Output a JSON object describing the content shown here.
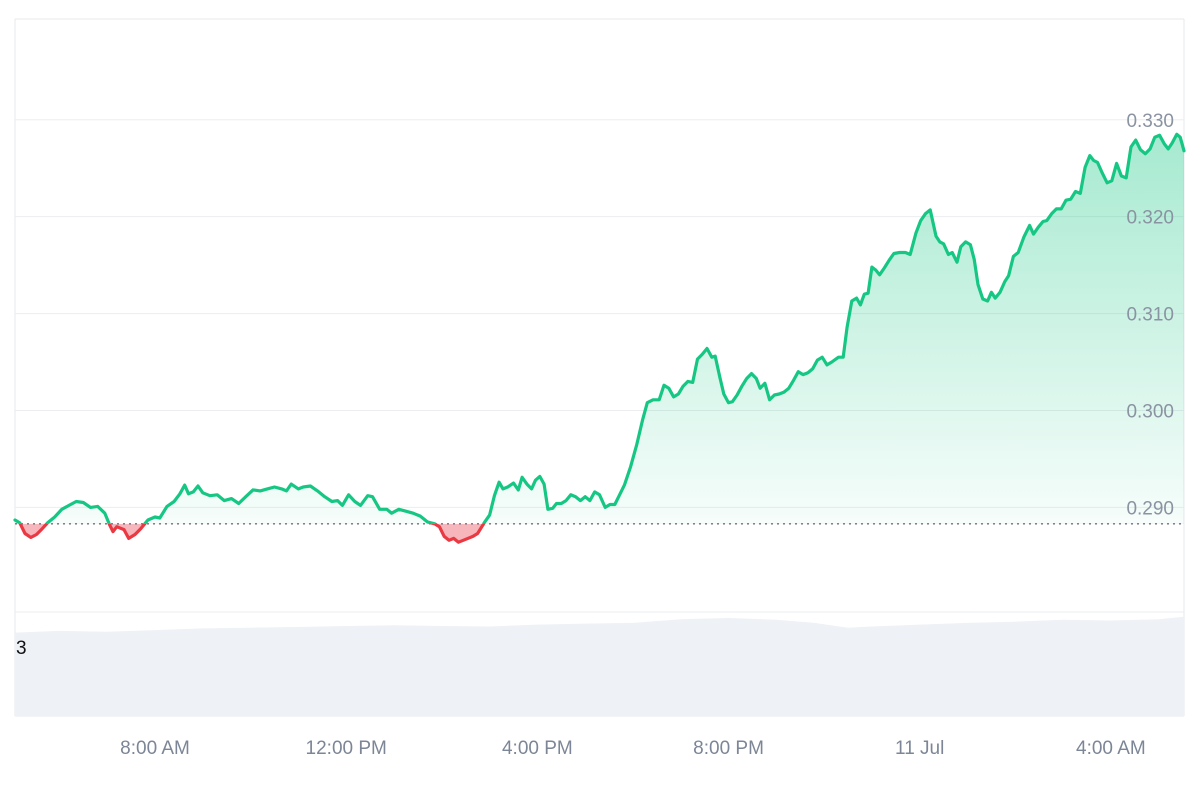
{
  "chart_data": {
    "type": "area",
    "y_ticks": [
      "0.290",
      "0.300",
      "0.310",
      "0.320",
      "0.330"
    ],
    "y_tick_values": [
      0.29,
      0.3,
      0.31,
      0.32,
      0.33
    ],
    "ylim": [
      0.2792,
      0.3403
    ],
    "x_ticks": [
      "8:00 AM",
      "12:00 PM",
      "4:00 PM",
      "8:00 PM",
      "11 Jul",
      "4:00 AM"
    ],
    "x_tick_hours": [
      8,
      12,
      16,
      20,
      24,
      28
    ],
    "xlim": [
      5.07,
      29.53
    ],
    "baseline": 0.2883,
    "volume_label": "3",
    "grid": true,
    "colors": {
      "up_line": "#16c784",
      "down_line": "#ea3943",
      "down_fill": "#f7b6bb",
      "volume": "#eef1f5",
      "grid": "#ebedf0",
      "baseline": "#6b7280"
    },
    "price_series": {
      "name": "",
      "points": [
        [
          5.07,
          0.2887
        ],
        [
          5.17,
          0.2884
        ],
        [
          5.28,
          0.2873
        ],
        [
          5.4,
          0.2869
        ],
        [
          5.52,
          0.2872
        ],
        [
          5.64,
          0.2878
        ],
        [
          5.75,
          0.2884
        ],
        [
          5.9,
          0.289
        ],
        [
          6.05,
          0.2898
        ],
        [
          6.2,
          0.2902
        ],
        [
          6.35,
          0.2906
        ],
        [
          6.5,
          0.2905
        ],
        [
          6.65,
          0.29
        ],
        [
          6.8,
          0.2901
        ],
        [
          6.95,
          0.2894
        ],
        [
          7.05,
          0.2882
        ],
        [
          7.12,
          0.2875
        ],
        [
          7.2,
          0.288
        ],
        [
          7.35,
          0.2877
        ],
        [
          7.45,
          0.2868
        ],
        [
          7.58,
          0.2872
        ],
        [
          7.7,
          0.2878
        ],
        [
          7.85,
          0.2887
        ],
        [
          8.0,
          0.289
        ],
        [
          8.1,
          0.2889
        ],
        [
          8.25,
          0.2901
        ],
        [
          8.4,
          0.2906
        ],
        [
          8.52,
          0.2914
        ],
        [
          8.62,
          0.2923
        ],
        [
          8.7,
          0.2914
        ],
        [
          8.8,
          0.2916
        ],
        [
          8.9,
          0.2922
        ],
        [
          9.0,
          0.2915
        ],
        [
          9.15,
          0.2912
        ],
        [
          9.3,
          0.2913
        ],
        [
          9.45,
          0.2907
        ],
        [
          9.6,
          0.2909
        ],
        [
          9.75,
          0.2904
        ],
        [
          9.9,
          0.2911
        ],
        [
          10.05,
          0.2918
        ],
        [
          10.2,
          0.2917
        ],
        [
          10.35,
          0.2919
        ],
        [
          10.5,
          0.2921
        ],
        [
          10.65,
          0.2919
        ],
        [
          10.75,
          0.2917
        ],
        [
          10.85,
          0.2924
        ],
        [
          11.0,
          0.2919
        ],
        [
          11.1,
          0.2921
        ],
        [
          11.25,
          0.2922
        ],
        [
          11.4,
          0.2917
        ],
        [
          11.55,
          0.2911
        ],
        [
          11.7,
          0.2906
        ],
        [
          11.82,
          0.2907
        ],
        [
          11.92,
          0.2902
        ],
        [
          12.05,
          0.2913
        ],
        [
          12.18,
          0.2906
        ],
        [
          12.3,
          0.2902
        ],
        [
          12.45,
          0.2912
        ],
        [
          12.55,
          0.2911
        ],
        [
          12.7,
          0.2898
        ],
        [
          12.85,
          0.2898
        ],
        [
          12.95,
          0.2894
        ],
        [
          13.1,
          0.2898
        ],
        [
          13.25,
          0.2896
        ],
        [
          13.4,
          0.2894
        ],
        [
          13.55,
          0.2891
        ],
        [
          13.7,
          0.2885
        ],
        [
          13.85,
          0.2883
        ],
        [
          13.95,
          0.288
        ],
        [
          14.05,
          0.287
        ],
        [
          14.15,
          0.2866
        ],
        [
          14.25,
          0.2868
        ],
        [
          14.35,
          0.2864
        ],
        [
          14.5,
          0.2867
        ],
        [
          14.65,
          0.287
        ],
        [
          14.75,
          0.2873
        ],
        [
          14.9,
          0.2885
        ],
        [
          15.0,
          0.2892
        ],
        [
          15.1,
          0.2912
        ],
        [
          15.2,
          0.2926
        ],
        [
          15.28,
          0.2919
        ],
        [
          15.38,
          0.2921
        ],
        [
          15.5,
          0.2925
        ],
        [
          15.6,
          0.2918
        ],
        [
          15.68,
          0.2931
        ],
        [
          15.78,
          0.2924
        ],
        [
          15.88,
          0.2919
        ],
        [
          15.96,
          0.2928
        ],
        [
          16.05,
          0.2932
        ],
        [
          16.14,
          0.2924
        ],
        [
          16.22,
          0.2898
        ],
        [
          16.32,
          0.2899
        ],
        [
          16.4,
          0.2904
        ],
        [
          16.5,
          0.2904
        ],
        [
          16.6,
          0.2907
        ],
        [
          16.7,
          0.2913
        ],
        [
          16.8,
          0.2911
        ],
        [
          16.9,
          0.2907
        ],
        [
          17.0,
          0.2911
        ],
        [
          17.1,
          0.2907
        ],
        [
          17.2,
          0.2916
        ],
        [
          17.3,
          0.2913
        ],
        [
          17.42,
          0.29
        ],
        [
          17.52,
          0.2903
        ],
        [
          17.62,
          0.2903
        ],
        [
          17.72,
          0.2913
        ],
        [
          17.82,
          0.2923
        ],
        [
          17.95,
          0.2942
        ],
        [
          18.08,
          0.2965
        ],
        [
          18.2,
          0.299
        ],
        [
          18.3,
          0.3008
        ],
        [
          18.42,
          0.3011
        ],
        [
          18.55,
          0.3011
        ],
        [
          18.65,
          0.3026
        ],
        [
          18.75,
          0.3023
        ],
        [
          18.85,
          0.3014
        ],
        [
          18.95,
          0.3017
        ],
        [
          19.05,
          0.3025
        ],
        [
          19.15,
          0.303
        ],
        [
          19.25,
          0.3029
        ],
        [
          19.35,
          0.3053
        ],
        [
          19.45,
          0.3058
        ],
        [
          19.55,
          0.3064
        ],
        [
          19.65,
          0.3055
        ],
        [
          19.72,
          0.3056
        ],
        [
          19.82,
          0.3034
        ],
        [
          19.9,
          0.3017
        ],
        [
          20.0,
          0.3008
        ],
        [
          20.08,
          0.3009
        ],
        [
          20.18,
          0.3016
        ],
        [
          20.28,
          0.3025
        ],
        [
          20.38,
          0.3033
        ],
        [
          20.48,
          0.3038
        ],
        [
          20.58,
          0.3033
        ],
        [
          20.66,
          0.3023
        ],
        [
          20.76,
          0.3028
        ],
        [
          20.86,
          0.3011
        ],
        [
          20.96,
          0.3016
        ],
        [
          21.06,
          0.3017
        ],
        [
          21.16,
          0.3019
        ],
        [
          21.26,
          0.3023
        ],
        [
          21.36,
          0.3031
        ],
        [
          21.46,
          0.304
        ],
        [
          21.56,
          0.3037
        ],
        [
          21.66,
          0.3039
        ],
        [
          21.76,
          0.3043
        ],
        [
          21.86,
          0.3052
        ],
        [
          21.96,
          0.3055
        ],
        [
          22.06,
          0.3047
        ],
        [
          22.16,
          0.305
        ],
        [
          22.3,
          0.3055
        ],
        [
          22.4,
          0.3055
        ],
        [
          22.48,
          0.3086
        ],
        [
          22.58,
          0.3113
        ],
        [
          22.68,
          0.3116
        ],
        [
          22.76,
          0.3109
        ],
        [
          22.84,
          0.312
        ],
        [
          22.92,
          0.3121
        ],
        [
          23.0,
          0.3148
        ],
        [
          23.08,
          0.3145
        ],
        [
          23.16,
          0.314
        ],
        [
          23.26,
          0.3147
        ],
        [
          23.36,
          0.3155
        ],
        [
          23.46,
          0.3162
        ],
        [
          23.58,
          0.3163
        ],
        [
          23.7,
          0.3163
        ],
        [
          23.8,
          0.3161
        ],
        [
          23.92,
          0.3183
        ],
        [
          24.02,
          0.3196
        ],
        [
          24.12,
          0.3203
        ],
        [
          24.22,
          0.3207
        ],
        [
          24.34,
          0.318
        ],
        [
          24.42,
          0.3174
        ],
        [
          24.5,
          0.3172
        ],
        [
          24.6,
          0.3161
        ],
        [
          24.68,
          0.3163
        ],
        [
          24.78,
          0.3153
        ],
        [
          24.86,
          0.3169
        ],
        [
          24.96,
          0.3174
        ],
        [
          25.06,
          0.3171
        ],
        [
          25.14,
          0.3156
        ],
        [
          25.22,
          0.313
        ],
        [
          25.32,
          0.3115
        ],
        [
          25.42,
          0.3113
        ],
        [
          25.5,
          0.3122
        ],
        [
          25.58,
          0.3116
        ],
        [
          25.68,
          0.3122
        ],
        [
          25.78,
          0.3133
        ],
        [
          25.86,
          0.3139
        ],
        [
          25.96,
          0.3159
        ],
        [
          26.06,
          0.3163
        ],
        [
          26.18,
          0.3179
        ],
        [
          26.3,
          0.3191
        ],
        [
          26.38,
          0.3182
        ],
        [
          26.48,
          0.3189
        ],
        [
          26.58,
          0.3195
        ],
        [
          26.66,
          0.3196
        ],
        [
          26.76,
          0.3203
        ],
        [
          26.86,
          0.3208
        ],
        [
          26.96,
          0.3208
        ],
        [
          27.06,
          0.3217
        ],
        [
          27.16,
          0.3218
        ],
        [
          27.26,
          0.3226
        ],
        [
          27.36,
          0.3224
        ],
        [
          27.46,
          0.3251
        ],
        [
          27.56,
          0.3263
        ],
        [
          27.64,
          0.3258
        ],
        [
          27.72,
          0.3256
        ],
        [
          27.82,
          0.3245
        ],
        [
          27.92,
          0.3235
        ],
        [
          28.02,
          0.3237
        ],
        [
          28.12,
          0.3255
        ],
        [
          28.22,
          0.3242
        ],
        [
          28.32,
          0.324
        ],
        [
          28.42,
          0.3272
        ],
        [
          28.52,
          0.3279
        ],
        [
          28.62,
          0.3269
        ],
        [
          28.72,
          0.3265
        ],
        [
          28.82,
          0.327
        ],
        [
          28.92,
          0.3282
        ],
        [
          29.02,
          0.3284
        ],
        [
          29.12,
          0.3275
        ],
        [
          29.2,
          0.327
        ],
        [
          29.28,
          0.3276
        ],
        [
          29.38,
          0.3285
        ],
        [
          29.45,
          0.3282
        ],
        [
          29.53,
          0.3268
        ]
      ]
    },
    "volume_series": {
      "name": "",
      "ylim": [
        0,
        4.3
      ],
      "points": [
        [
          5.07,
          3.45
        ],
        [
          6.0,
          3.52
        ],
        [
          7.0,
          3.48
        ],
        [
          8.0,
          3.55
        ],
        [
          9.0,
          3.62
        ],
        [
          10.0,
          3.65
        ],
        [
          11.0,
          3.68
        ],
        [
          12.0,
          3.72
        ],
        [
          13.0,
          3.75
        ],
        [
          14.0,
          3.72
        ],
        [
          15.0,
          3.7
        ],
        [
          16.0,
          3.78
        ],
        [
          17.0,
          3.82
        ],
        [
          18.0,
          3.85
        ],
        [
          19.0,
          4.0
        ],
        [
          20.0,
          4.05
        ],
        [
          21.0,
          3.98
        ],
        [
          21.8,
          3.85
        ],
        [
          22.5,
          3.65
        ],
        [
          23.0,
          3.7
        ],
        [
          24.0,
          3.78
        ],
        [
          25.0,
          3.85
        ],
        [
          26.0,
          3.9
        ],
        [
          27.0,
          3.98
        ],
        [
          28.0,
          3.95
        ],
        [
          29.0,
          4.0
        ],
        [
          29.53,
          4.1
        ]
      ]
    }
  }
}
